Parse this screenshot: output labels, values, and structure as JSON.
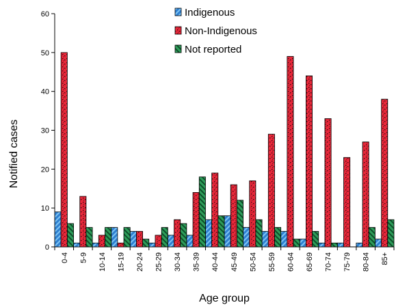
{
  "chart_data": {
    "type": "bar",
    "xlabel": "Age group",
    "ylabel": "Notified cases",
    "ylim": [
      0,
      60
    ],
    "yticks": [
      0,
      10,
      20,
      30,
      40,
      50,
      60
    ],
    "grid": false,
    "legend_position": "top-center",
    "categories": [
      "0-4",
      "5-9",
      "10-14",
      "15-19",
      "20-24",
      "25-29",
      "30-34",
      "35-39",
      "40-44",
      "45-49",
      "50-54",
      "55-59",
      "60-64",
      "65-69",
      "70-74",
      "75-79",
      "80-84",
      "85+"
    ],
    "series": [
      {
        "name": "Indigenous",
        "color": "#2E7FD0",
        "pattern": "diagonal-stripes",
        "values": [
          9,
          1,
          1,
          5,
          4,
          1,
          3,
          3,
          7,
          8,
          5,
          4,
          4,
          2,
          1,
          1,
          1,
          2
        ]
      },
      {
        "name": "Non-Indigenous",
        "color": "#E8283A",
        "pattern": "speckled",
        "values": [
          50,
          13,
          3,
          1,
          4,
          3,
          7,
          14,
          19,
          16,
          17,
          29,
          49,
          44,
          33,
          23,
          27,
          38
        ]
      },
      {
        "name": "Not reported",
        "color": "#2E9E5A",
        "pattern": "diagonal-stripes",
        "values": [
          6,
          5,
          5,
          5,
          2,
          5,
          6,
          18,
          8,
          12,
          7,
          5,
          2,
          4,
          1,
          0,
          5,
          7
        ]
      }
    ]
  }
}
